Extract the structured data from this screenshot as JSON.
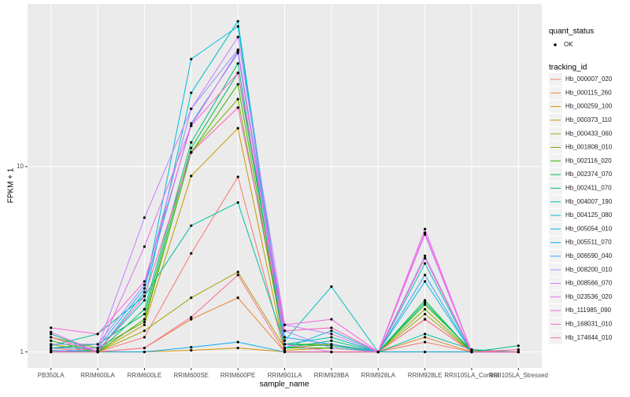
{
  "chart_data": {
    "type": "line",
    "xlabel": "sample_name",
    "ylabel": "FPKM + 1",
    "categories": [
      "PB350LA",
      "RRIM600LA",
      "RRIM600LE",
      "RRIM600SE",
      "RRIM600PE",
      "RRIM901LA",
      "RRIM928BA",
      "RRIM928LA",
      "RRIM928LE",
      "RRII105LA_Control",
      "RRII105LA_Stressed"
    ],
    "ylim": [
      0.82,
      75.4
    ],
    "yticks": [
      1,
      10
    ],
    "log_y": true,
    "grid": true,
    "legend_position": "right",
    "point_color": "#000000",
    "shape_legend_title": "quant_status",
    "shape_legend_entries": [
      "OK"
    ],
    "legend_title": "tracking_id",
    "series": [
      {
        "name": "Hb_000007_020",
        "color": "#F8766D",
        "values": [
          1.05,
          1.0,
          1.2,
          3.4,
          8.8,
          1.0,
          1.0,
          1.0,
          1.13,
          1.0,
          1.0
        ]
      },
      {
        "name": "Hb_000115_260",
        "color": "#EA8331",
        "values": [
          1.0,
          1.0,
          1.05,
          1.5,
          1.96,
          1.0,
          1.0,
          1.0,
          1.2,
          1.0,
          1.0
        ]
      },
      {
        "name": "Hb_000259_100",
        "color": "#D89000",
        "values": [
          1.0,
          1.0,
          1.0,
          1.02,
          1.05,
          1.0,
          1.0,
          1.0,
          1.0,
          1.0,
          1.0
        ]
      },
      {
        "name": "Hb_000373_110",
        "color": "#C09B00",
        "values": [
          1.02,
          1.0,
          1.4,
          8.9,
          16.1,
          1.02,
          1.05,
          1.0,
          1.5,
          1.0,
          1.0
        ]
      },
      {
        "name": "Hb_000433_060",
        "color": "#A3A500",
        "values": [
          1.1,
          1.0,
          1.3,
          1.96,
          2.7,
          1.05,
          1.1,
          1.0,
          1.6,
          1.0,
          1.0
        ]
      },
      {
        "name": "Hb_001808_010",
        "color": "#7CAE00",
        "values": [
          1.2,
          1.05,
          1.45,
          12.0,
          23.1,
          1.1,
          1.1,
          1.0,
          1.7,
          1.0,
          1.0
        ]
      },
      {
        "name": "Hb_002116_020",
        "color": "#39B600",
        "values": [
          1.15,
          1.0,
          1.5,
          11.9,
          27.8,
          1.05,
          1.05,
          1.0,
          1.8,
          1.02,
          1.0
        ]
      },
      {
        "name": "Hb_002374_070",
        "color": "#00BB4E",
        "values": [
          1.05,
          1.1,
          1.6,
          12.6,
          32,
          1.1,
          1.08,
          1.0,
          1.9,
          1.0,
          1.0
        ]
      },
      {
        "name": "Hb_002411_070",
        "color": "#00BF7D",
        "values": [
          1.25,
          1.0,
          1.7,
          13.5,
          36,
          1.05,
          1.15,
          1.0,
          1.85,
          1.0,
          1.08
        ]
      },
      {
        "name": "Hb_004007_190",
        "color": "#00C1A3",
        "values": [
          1.08,
          1.25,
          2.0,
          4.8,
          6.4,
          1.1,
          1.2,
          1.0,
          1.25,
          1.03,
          1.0
        ]
      },
      {
        "name": "Hb_004125_080",
        "color": "#00BFC4",
        "values": [
          1.0,
          1.02,
          1.9,
          25,
          60.8,
          1.15,
          2.25,
          1.0,
          3.0,
          1.0,
          1.0
        ]
      },
      {
        "name": "Hb_005054_010",
        "color": "#00BAE0",
        "values": [
          1.02,
          1.0,
          2.1,
          38,
          57,
          1.05,
          1.3,
          1.0,
          2.4,
          1.0,
          1.0
        ]
      },
      {
        "name": "Hb_005511_070",
        "color": "#00B0F6",
        "values": [
          1.0,
          1.0,
          1.0,
          1.06,
          1.13,
          1.0,
          1.0,
          1.0,
          1.0,
          1.0,
          1.0
        ]
      },
      {
        "name": "Hb_006590_040",
        "color": "#35A2FF",
        "values": [
          1.05,
          1.05,
          2.2,
          17.1,
          41,
          1.2,
          1.1,
          1.0,
          2.6,
          1.0,
          1.0
        ]
      },
      {
        "name": "Hb_008200_010",
        "color": "#9590FF",
        "values": [
          1.1,
          1.1,
          2.3,
          20.5,
          42.7,
          1.3,
          1.05,
          1.0,
          3.3,
          1.0,
          1.0
        ]
      },
      {
        "name": "Hb_008566_070",
        "color": "#C77CFF",
        "values": [
          1.0,
          1.05,
          5.3,
          20.5,
          50,
          1.4,
          1.25,
          1.0,
          4.3,
          1.0,
          1.0
        ]
      },
      {
        "name": "Hb_023536_020",
        "color": "#E76BF3",
        "values": [
          1.28,
          1.0,
          3.7,
          16.6,
          42,
          1.1,
          1.0,
          1.0,
          4.6,
          1.0,
          1.0
        ]
      },
      {
        "name": "Hb_111985_090",
        "color": "#FA62DB",
        "values": [
          1.35,
          1.25,
          2.4,
          16.6,
          32,
          1.4,
          1.5,
          1.0,
          4.4,
          1.0,
          1.0
        ]
      },
      {
        "name": "Hb_168031_010",
        "color": "#FF62BC",
        "values": [
          1.2,
          1.0,
          2.0,
          11.9,
          20.8,
          1.3,
          1.35,
          1.0,
          3.2,
          1.0,
          1.03
        ]
      },
      {
        "name": "Hb_174644_010",
        "color": "#FF6C91",
        "values": [
          1.0,
          1.0,
          1.05,
          1.54,
          2.6,
          1.0,
          1.0,
          1.0,
          1.5,
          1.0,
          1.0
        ]
      }
    ]
  }
}
